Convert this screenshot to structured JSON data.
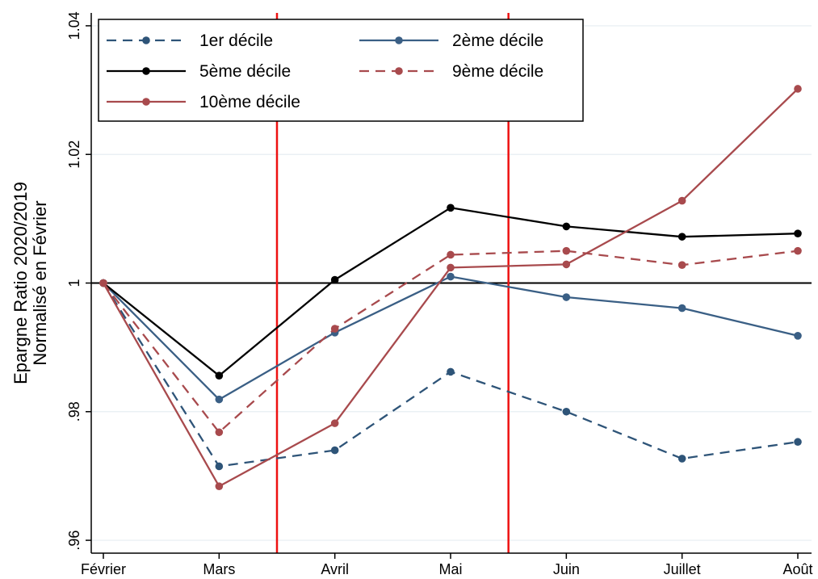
{
  "chart_data": {
    "type": "line",
    "title": "",
    "xlabel": "",
    "ylabel_line1": "Epargne Ratio 2020/2019",
    "ylabel_line2": "Normalisé en Février",
    "categories": [
      "Février",
      "Mars",
      "Avril",
      "Mai",
      "Juin",
      "Juillet",
      "Août"
    ],
    "ylim": [
      0.958,
      1.042
    ],
    "yticks": [
      0.96,
      0.98,
      1,
      1.02,
      1.04
    ],
    "ytick_labels": [
      ".96",
      ".98",
      "1",
      "1.02",
      "1.04"
    ],
    "grid": true,
    "reference_line_y": 1,
    "vertical_markers_between": [
      [
        1,
        2
      ],
      [
        3,
        4
      ]
    ],
    "legend_position": "top-left",
    "series": [
      {
        "name": "1er décile",
        "color": "#2e5478",
        "dashed": true,
        "values": [
          1.0,
          0.9715,
          0.974,
          0.9862,
          0.98,
          0.9727,
          0.9753
        ]
      },
      {
        "name": "2ème décile",
        "color": "#3a5f85",
        "dashed": false,
        "values": [
          1.0,
          0.9819,
          0.9923,
          1.001,
          0.9978,
          0.9961,
          0.9918
        ]
      },
      {
        "name": "5ème décile",
        "color": "#000000",
        "dashed": false,
        "values": [
          1.0,
          0.9856,
          1.0005,
          1.0117,
          1.0088,
          1.0072,
          1.0077
        ]
      },
      {
        "name": "9ème décile",
        "color": "#a84a4d",
        "dashed": true,
        "values": [
          1.0,
          0.9768,
          0.9929,
          1.0044,
          1.005,
          1.0028,
          1.005
        ]
      },
      {
        "name": "10ème décile",
        "color": "#a84a4d",
        "dashed": false,
        "values": [
          1.0,
          0.9684,
          0.9782,
          1.0024,
          1.0029,
          1.0128,
          1.0302
        ]
      }
    ]
  }
}
